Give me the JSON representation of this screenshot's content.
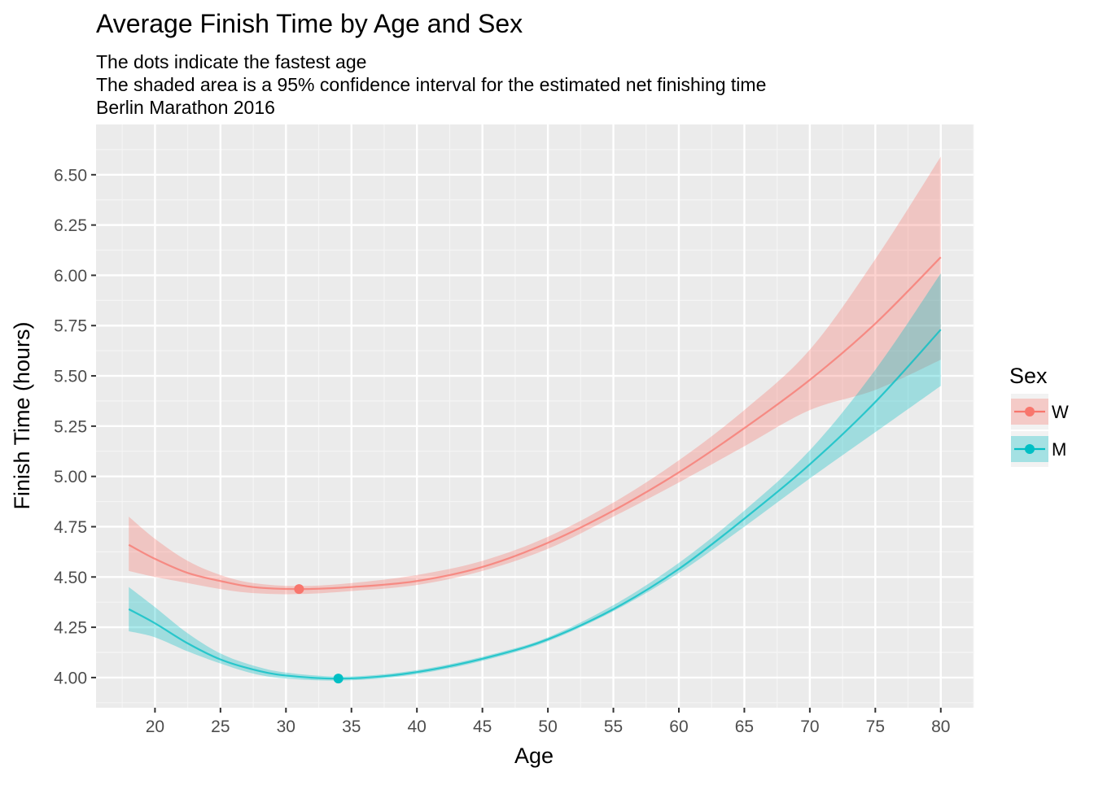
{
  "chart_data": {
    "type": "line",
    "title": "Average Finish Time by Age and Sex",
    "subtitle": [
      "The dots indicate the fastest age",
      "The shaded area is a 95% confidence interval for the estimated net finishing time",
      "Berlin Marathon 2016"
    ],
    "xlabel": "Age",
    "ylabel": "Finish Time (hours)",
    "xlim": [
      15.5,
      82.5
    ],
    "ylim": [
      3.85,
      6.75
    ],
    "x_ticks": [
      20,
      25,
      30,
      35,
      40,
      45,
      50,
      55,
      60,
      65,
      70,
      75,
      80
    ],
    "y_ticks": [
      4.0,
      4.25,
      4.5,
      4.75,
      5.0,
      5.25,
      5.5,
      5.75,
      6.0,
      6.25,
      6.5
    ],
    "y_tick_labels": [
      "4.00",
      "4.25",
      "4.50",
      "4.75",
      "5.00",
      "5.25",
      "5.50",
      "5.75",
      "6.00",
      "6.25",
      "6.50"
    ],
    "grid": true,
    "legend": {
      "title": "Sex",
      "placement": "right",
      "entries": [
        "W",
        "M"
      ]
    },
    "series": [
      {
        "name": "W",
        "color": "#F8766D",
        "x": [
          18,
          20,
          22.5,
          25,
          27.5,
          31,
          35,
          40,
          45,
          50,
          55,
          60,
          65,
          70,
          75,
          80
        ],
        "y": [
          4.66,
          4.59,
          4.52,
          4.48,
          4.45,
          4.44,
          4.45,
          4.48,
          4.55,
          4.67,
          4.83,
          5.02,
          5.24,
          5.48,
          5.76,
          6.09
        ],
        "lower": [
          4.53,
          4.5,
          4.47,
          4.44,
          4.42,
          4.415,
          4.43,
          4.46,
          4.53,
          4.64,
          4.8,
          4.97,
          5.15,
          5.33,
          5.43,
          5.58
        ],
        "upper": [
          4.8,
          4.69,
          4.58,
          4.51,
          4.47,
          4.455,
          4.47,
          4.51,
          4.58,
          4.7,
          4.87,
          5.08,
          5.33,
          5.63,
          6.08,
          6.59
        ],
        "fastest": {
          "x": 31,
          "y": 4.44
        }
      },
      {
        "name": "M",
        "color": "#00BFC4",
        "x": [
          18,
          20,
          22.5,
          25,
          27.5,
          30,
          34,
          38,
          42,
          46,
          50,
          55,
          60,
          65,
          70,
          75,
          80
        ],
        "y": [
          4.34,
          4.27,
          4.17,
          4.09,
          4.04,
          4.01,
          3.995,
          4.01,
          4.05,
          4.11,
          4.19,
          4.34,
          4.54,
          4.79,
          5.06,
          5.37,
          5.73
        ],
        "lower": [
          4.23,
          4.2,
          4.13,
          4.07,
          4.02,
          3.995,
          3.985,
          4.0,
          4.04,
          4.1,
          4.18,
          4.33,
          4.52,
          4.75,
          4.99,
          5.22,
          5.45
        ],
        "upper": [
          4.45,
          4.35,
          4.22,
          4.12,
          4.06,
          4.025,
          4.005,
          4.02,
          4.06,
          4.12,
          4.2,
          4.36,
          4.57,
          4.83,
          5.13,
          5.53,
          6.01
        ],
        "fastest": {
          "x": 34,
          "y": 3.995
        }
      }
    ]
  }
}
